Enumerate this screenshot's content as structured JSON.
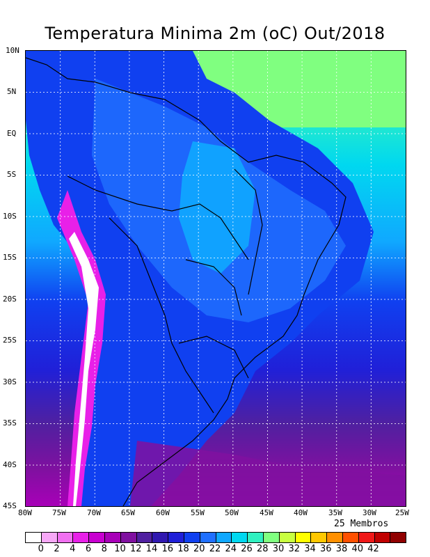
{
  "title": "Temperatura Minima 2m (oC) Out/2018",
  "members_label": "25 Membros",
  "lat_labels": [
    "10N",
    "5N",
    "EQ",
    "5S",
    "10S",
    "15S",
    "20S",
    "25S",
    "30S",
    "35S",
    "40S",
    "45S"
  ],
  "lon_labels": [
    "80W",
    "75W",
    "70W",
    "65W",
    "60W",
    "55W",
    "50W",
    "45W",
    "40W",
    "35W",
    "30W",
    "25W"
  ],
  "colorbar": {
    "labels": [
      "0",
      "2",
      "4",
      "6",
      "8",
      "10",
      "12",
      "14",
      "16",
      "18",
      "20",
      "22",
      "24",
      "26",
      "28",
      "30",
      "32",
      "34",
      "36",
      "38",
      "40",
      "42"
    ],
    "colors": [
      "#ffffff",
      "#f7a8f7",
      "#f070f0",
      "#e820e8",
      "#c800d0",
      "#a800b8",
      "#8010a0",
      "#5020a0",
      "#3018b0",
      "#2020d8",
      "#1040f0",
      "#2070ff",
      "#10a8ff",
      "#00d8f0",
      "#30f0c0",
      "#80ff80",
      "#c8ff40",
      "#ffff00",
      "#ffc800",
      "#ff9000",
      "#ff5000",
      "#f01818",
      "#c00000",
      "#900000"
    ]
  }
}
